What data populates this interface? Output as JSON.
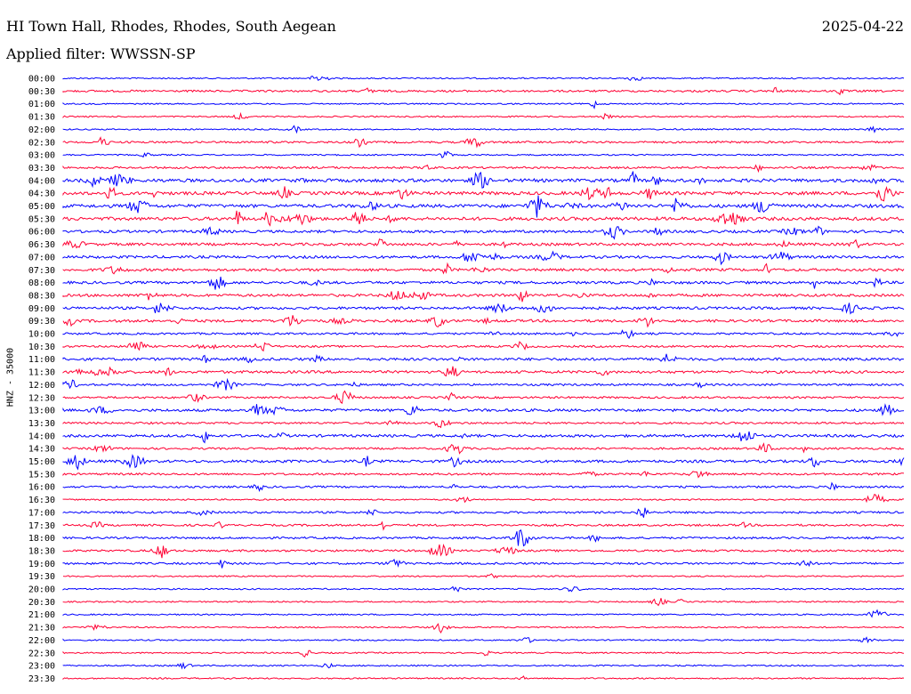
{
  "header": {
    "station": "HI Town Hall, Rhodes, Rhodes, South Aegean",
    "date": "2025-04-22",
    "filter": "Applied filter: WWSSN-SP"
  },
  "chart_data": {
    "type": "line",
    "title": "HI Town Hall, Rhodes, Rhodes, South Aegean",
    "subtitle": "Applied filter: WWSSN-SP",
    "ylabel": "HNZ - 35000",
    "xlabel": "",
    "grid": false,
    "colors": {
      "even": "#0000ff",
      "odd": "#ff0033"
    },
    "rows": [
      "00:00",
      "00:30",
      "01:00",
      "01:30",
      "02:00",
      "02:30",
      "03:00",
      "03:30",
      "04:00",
      "04:30",
      "05:00",
      "05:30",
      "06:00",
      "06:30",
      "07:00",
      "07:30",
      "08:00",
      "08:30",
      "09:00",
      "09:30",
      "10:00",
      "10:30",
      "11:00",
      "11:30",
      "12:00",
      "12:30",
      "13:00",
      "13:30",
      "14:00",
      "14:30",
      "15:00",
      "15:30",
      "16:00",
      "16:30",
      "17:00",
      "17:30",
      "18:00",
      "18:30",
      "19:00",
      "19:30",
      "20:00",
      "20:30",
      "21:00",
      "21:30",
      "22:00",
      "22:30",
      "23:00",
      "23:30"
    ],
    "activity": [
      1,
      2,
      1,
      1,
      1,
      2,
      1,
      2,
      4,
      4,
      4,
      4,
      3,
      3,
      3,
      3,
      3,
      3,
      3,
      3,
      2,
      2,
      3,
      3,
      2,
      2,
      3,
      2,
      3,
      2,
      3,
      2,
      2,
      1,
      2,
      2,
      2,
      2,
      2,
      1,
      1,
      1,
      1,
      1,
      1,
      1,
      1,
      1
    ]
  }
}
